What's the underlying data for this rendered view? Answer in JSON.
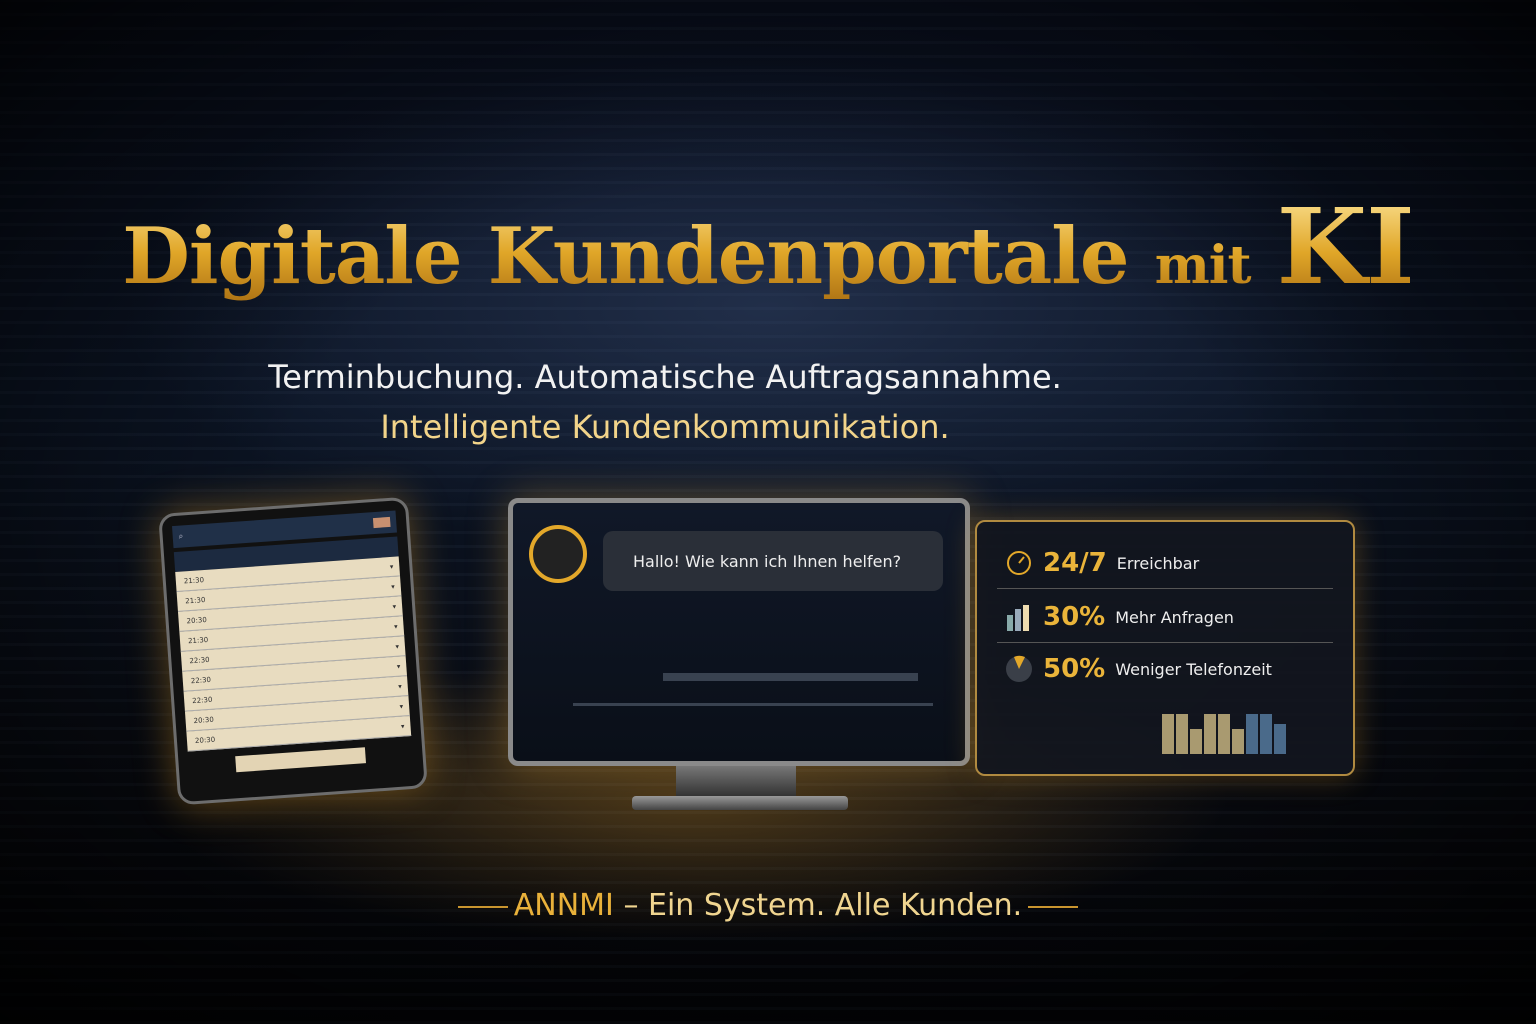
{
  "title": {
    "main": "Digitale Kundenportale",
    "mit": "mit",
    "ki": "KI"
  },
  "subtitle": {
    "line1": "Terminbuchung. Automatische Auftragsannahme.",
    "line2": "Intelligente Kundenkommunikation."
  },
  "tablet": {
    "rows": [
      "21:30",
      "21:30",
      "20:30",
      "21:30",
      "22:30",
      "22:30",
      "22:30",
      "20:30",
      "20:30"
    ]
  },
  "chat": {
    "message": "Hallo! Wie kann ich Ihnen helfen?"
  },
  "stats": [
    {
      "icon": "clock-icon",
      "value": "24/7",
      "label": "Erreichbar"
    },
    {
      "icon": "bar-chart-icon",
      "value": "30%",
      "label": "Mehr Anfragen"
    },
    {
      "icon": "pie-chart-icon",
      "value": "50%",
      "label": "Weniger Telefonzeit"
    }
  ],
  "tagline": {
    "brand": "ANNMI",
    "rest": "– Ein System. Alle Kunden."
  },
  "colors": {
    "gold": "#e9b13a",
    "background": "#05070d"
  }
}
